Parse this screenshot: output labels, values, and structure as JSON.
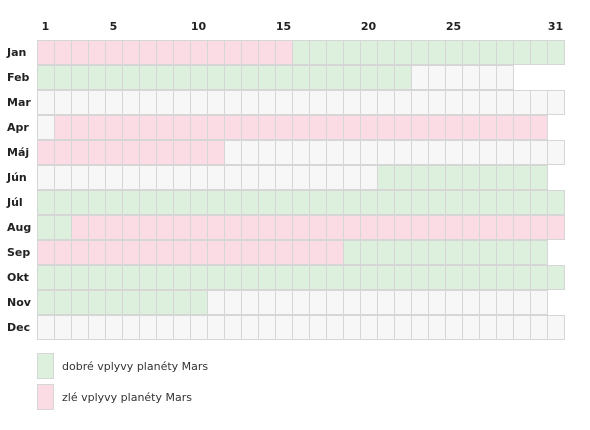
{
  "chart_data": {
    "type": "heatmap",
    "day_labels": [
      "1",
      "5",
      "10",
      "15",
      "20",
      "25",
      "31"
    ],
    "label_days": [
      1,
      5,
      10,
      15,
      20,
      25,
      31
    ],
    "months": [
      {
        "label": "Jan",
        "days": 31,
        "segments": [
          {
            "from": 1,
            "to": 15,
            "state": "bad"
          },
          {
            "from": 16,
            "to": 31,
            "state": "good"
          }
        ]
      },
      {
        "label": "Feb",
        "days": 28,
        "segments": [
          {
            "from": 1,
            "to": 22,
            "state": "good"
          }
        ]
      },
      {
        "label": "Mar",
        "days": 31,
        "segments": []
      },
      {
        "label": "Apr",
        "days": 30,
        "segments": [
          {
            "from": 2,
            "to": 30,
            "state": "bad"
          }
        ]
      },
      {
        "label": "Máj",
        "days": 31,
        "segments": [
          {
            "from": 1,
            "to": 11,
            "state": "bad"
          }
        ]
      },
      {
        "label": "Jún",
        "days": 30,
        "segments": [
          {
            "from": 21,
            "to": 30,
            "state": "good"
          }
        ]
      },
      {
        "label": "Júl",
        "days": 31,
        "segments": [
          {
            "from": 1,
            "to": 31,
            "state": "good"
          }
        ]
      },
      {
        "label": "Aug",
        "days": 31,
        "segments": [
          {
            "from": 1,
            "to": 2,
            "state": "good"
          },
          {
            "from": 3,
            "to": 31,
            "state": "bad"
          }
        ]
      },
      {
        "label": "Sep",
        "days": 30,
        "segments": [
          {
            "from": 1,
            "to": 18,
            "state": "bad"
          },
          {
            "from": 19,
            "to": 30,
            "state": "good"
          }
        ]
      },
      {
        "label": "Okt",
        "days": 31,
        "segments": [
          {
            "from": 1,
            "to": 31,
            "state": "good"
          }
        ]
      },
      {
        "label": "Nov",
        "days": 30,
        "segments": [
          {
            "from": 1,
            "to": 10,
            "state": "good"
          }
        ]
      },
      {
        "label": "Dec",
        "days": 31,
        "segments": []
      }
    ]
  },
  "legend": {
    "good": {
      "label": "dobré vplyvy planéty Mars",
      "color": "#ddf0dd"
    },
    "bad": {
      "label": "zlé vplyvy planéty Mars",
      "color": "#fcdce4"
    }
  },
  "colors": {
    "neutral": "#f7f7f7",
    "grid": "#d6d6d6",
    "text": "#333333"
  }
}
